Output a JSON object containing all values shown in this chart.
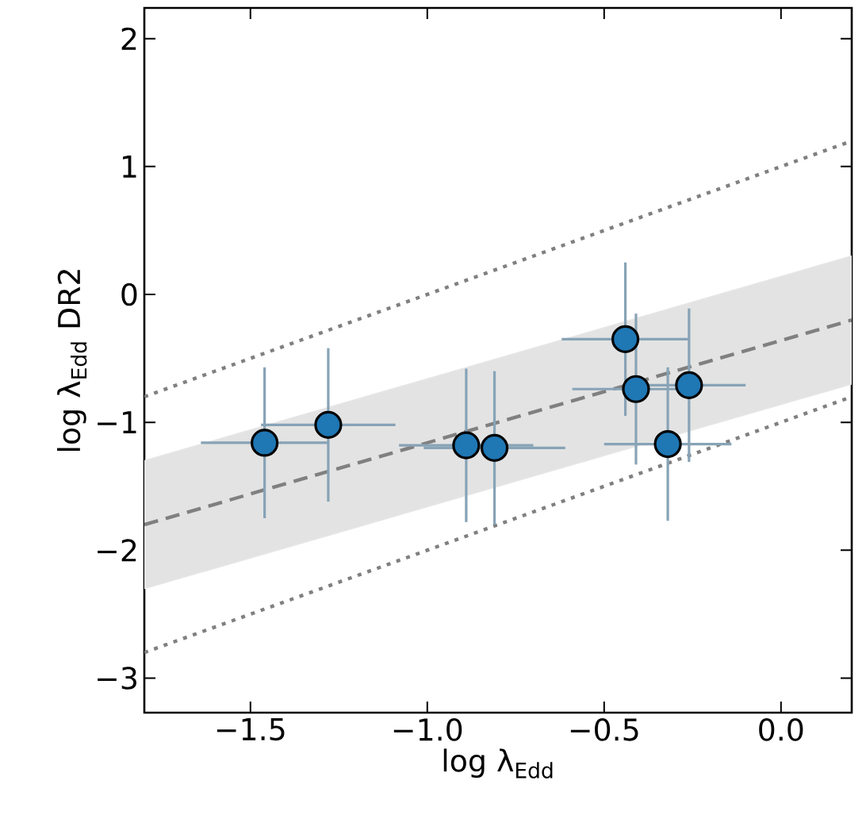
{
  "chart_data": {
    "type": "scatter",
    "xlabel": "log λ$_{Edd}$",
    "ylabel": "log λ$_{Edd}$ DR2",
    "xlim": [
      -1.8,
      0.2
    ],
    "ylim": [
      -3.27,
      2.24
    ],
    "xticks": [
      {
        "value": -1.5,
        "label": "−1.5"
      },
      {
        "value": -1.0,
        "label": "−1.0"
      },
      {
        "value": -0.5,
        "label": "−0.5"
      },
      {
        "value": 0.0,
        "label": "0.0"
      }
    ],
    "yticks": [
      {
        "value": -3,
        "label": "−3"
      },
      {
        "value": -2,
        "label": "−2"
      },
      {
        "value": -1,
        "label": "−1"
      },
      {
        "value": 0,
        "label": "0"
      },
      {
        "value": 1,
        "label": "1"
      },
      {
        "value": 2,
        "label": "2"
      }
    ],
    "series": [
      {
        "type": "line",
        "marker": "none",
        "color": "#808080",
        "line_style": "dashed",
        "x": [
          -1.8,
          0.2
        ],
        "values": [
          -1.8,
          -0.2
        ],
        "lower": [
          -2.3,
          -0.7
        ],
        "upper": [
          -1.3,
          0.3
        ]
      },
      {
        "type": "line",
        "color": "#808080",
        "line_style": "dotted",
        "marker": "none",
        "x": [
          -1.8,
          0.2
        ],
        "values": [
          -0.8,
          1.2
        ]
      },
      {
        "type": "line",
        "color": "#808080",
        "line_style": "dotted",
        "marker": "none",
        "x": [
          -1.8,
          0.2
        ],
        "values": [
          -2.8,
          -0.8
        ]
      },
      {
        "marker": "circle",
        "color": "#1f77b4",
        "x": [
          -1.46,
          -1.28,
          -0.89,
          -0.81,
          -0.44,
          -0.41,
          -0.26,
          -0.32
        ],
        "values": [
          -1.16,
          -1.02,
          -1.18,
          -1.2,
          -0.35,
          -0.74,
          -0.71,
          -1.17
        ],
        "xerrors": [
          0.18,
          0.19,
          0.19,
          0.2,
          0.18,
          0.18,
          0.16,
          0.18
        ],
        "errors": [
          0.59,
          0.6,
          0.6,
          0.6,
          0.6,
          0.59,
          0.6,
          0.6
        ]
      }
    ]
  }
}
